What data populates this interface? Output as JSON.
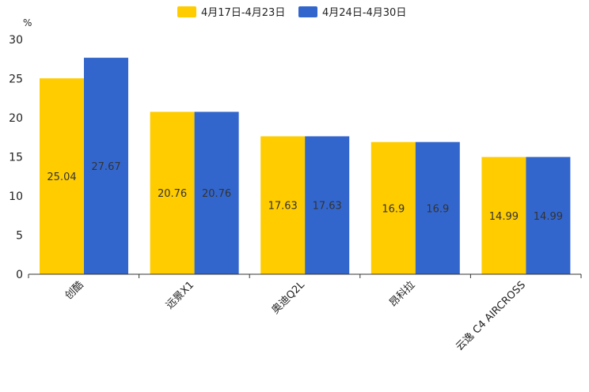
{
  "chart_data": {
    "type": "bar",
    "title": "",
    "unit": "%",
    "xlabel": "",
    "ylabel": "%",
    "ylim": [
      0,
      30
    ],
    "yticks": [
      0,
      5,
      10,
      15,
      20,
      25,
      30
    ],
    "grid": false,
    "legend_position": "top-center",
    "categories": [
      "创酷",
      "远景X1",
      "奥迪Q2L",
      "昂科拉",
      "云逸 C4 AIRCROSS"
    ],
    "series": [
      {
        "name": "4月17日-4月23日",
        "color": "#FFCC00",
        "values": [
          25.04,
          20.76,
          17.63,
          16.9,
          14.99
        ]
      },
      {
        "name": "4月24日-4月30日",
        "color": "#3366CC",
        "values": [
          27.67,
          20.76,
          17.63,
          16.9,
          14.99
        ]
      }
    ]
  }
}
